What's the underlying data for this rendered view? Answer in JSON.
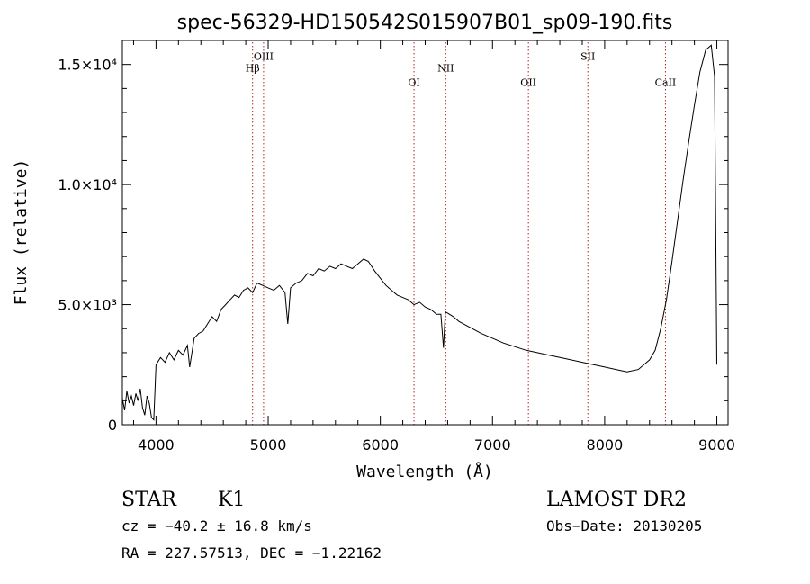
{
  "chart_data": {
    "type": "line",
    "title": "spec-56329-HD150542S015907B01_sp09-190.fits",
    "xlabel": "Wavelength (Å)",
    "ylabel": "Flux (relative)",
    "xlim": [
      3700,
      9100
    ],
    "ylim": [
      0,
      16000
    ],
    "x_ticks": [
      4000,
      5000,
      6000,
      7000,
      8000,
      9000
    ],
    "x_tick_labels": [
      "4000",
      "5000",
      "6000",
      "7000",
      "8000",
      "9000"
    ],
    "y_ticks": [
      0,
      5000,
      10000,
      15000
    ],
    "y_tick_labels": [
      "0",
      "5.0×10³",
      "1.0×10⁴",
      "1.5×10⁴"
    ],
    "grid": false,
    "line_color": "#000000",
    "marker_color": "#b22222",
    "line_markers": [
      {
        "label": "Hβ",
        "x": 4861,
        "label_y": 14700
      },
      {
        "label": "OIII",
        "x": 4959,
        "label_y": 15200
      },
      {
        "label": "OI",
        "x": 6300,
        "label_y": 14100
      },
      {
        "label": "NII",
        "x": 6583,
        "label_y": 14700
      },
      {
        "label": "OII",
        "x": 7320,
        "label_y": 14100
      },
      {
        "label": "SII",
        "x": 7850,
        "label_y": 15200
      },
      {
        "label": "CaII",
        "x": 8542,
        "label_y": 14100
      }
    ],
    "series": [
      {
        "x": [
          3700,
          3720,
          3740,
          3760,
          3780,
          3800,
          3820,
          3840,
          3860,
          3880,
          3900,
          3920,
          3940,
          3960,
          3980,
          4000,
          4040,
          4080,
          4120,
          4160,
          4200,
          4240,
          4280,
          4300,
          4340,
          4380,
          4420,
          4460,
          4500,
          4540,
          4580,
          4620,
          4660,
          4700,
          4740,
          4780,
          4820,
          4861,
          4900,
          4950,
          5000,
          5050,
          5100,
          5150,
          5175,
          5200,
          5250,
          5300,
          5350,
          5400,
          5450,
          5500,
          5550,
          5600,
          5650,
          5700,
          5750,
          5800,
          5850,
          5893,
          5950,
          6000,
          6050,
          6100,
          6150,
          6200,
          6250,
          6300,
          6350,
          6400,
          6450,
          6500,
          6540,
          6563,
          6580,
          6600,
          6650,
          6700,
          6800,
          6900,
          7000,
          7100,
          7200,
          7300,
          7400,
          7500,
          7600,
          7700,
          7800,
          7900,
          8000,
          8100,
          8200,
          8300,
          8400,
          8450,
          8500,
          8550,
          8600,
          8650,
          8700,
          8750,
          8800,
          8850,
          8900,
          8950,
          8980,
          9000
        ],
        "y": [
          1100,
          600,
          1400,
          900,
          1200,
          800,
          1300,
          1000,
          1500,
          700,
          400,
          1200,
          900,
          300,
          200,
          2500,
          2800,
          2600,
          3000,
          2700,
          3100,
          2900,
          3300,
          2400,
          3600,
          3800,
          3900,
          4200,
          4500,
          4300,
          4800,
          5000,
          5200,
          5400,
          5300,
          5600,
          5700,
          5500,
          5900,
          5800,
          5700,
          5600,
          5800,
          5500,
          4200,
          5700,
          5900,
          6000,
          6300,
          6200,
          6500,
          6400,
          6600,
          6500,
          6700,
          6600,
          6500,
          6700,
          6900,
          6800,
          6400,
          6100,
          5800,
          5600,
          5400,
          5300,
          5200,
          5000,
          5100,
          4900,
          4800,
          4600,
          4600,
          3200,
          4700,
          4650,
          4500,
          4300,
          4050,
          3800,
          3600,
          3400,
          3250,
          3100,
          3000,
          2900,
          2800,
          2700,
          2600,
          2500,
          2400,
          2300,
          2200,
          2300,
          2700,
          3100,
          4000,
          5200,
          6800,
          8500,
          10200,
          11800,
          13300,
          14700,
          15600,
          15800,
          14500,
          2500
        ]
      }
    ]
  },
  "annotations": {
    "object_class": "STAR",
    "subclass": "K1",
    "survey": "LAMOST DR2",
    "cz": "cz = −40.2 ± 16.8 km/s",
    "obs_date": "Obs−Date: 20130205",
    "coords": "RA = 227.57513, DEC =  −1.22162"
  }
}
